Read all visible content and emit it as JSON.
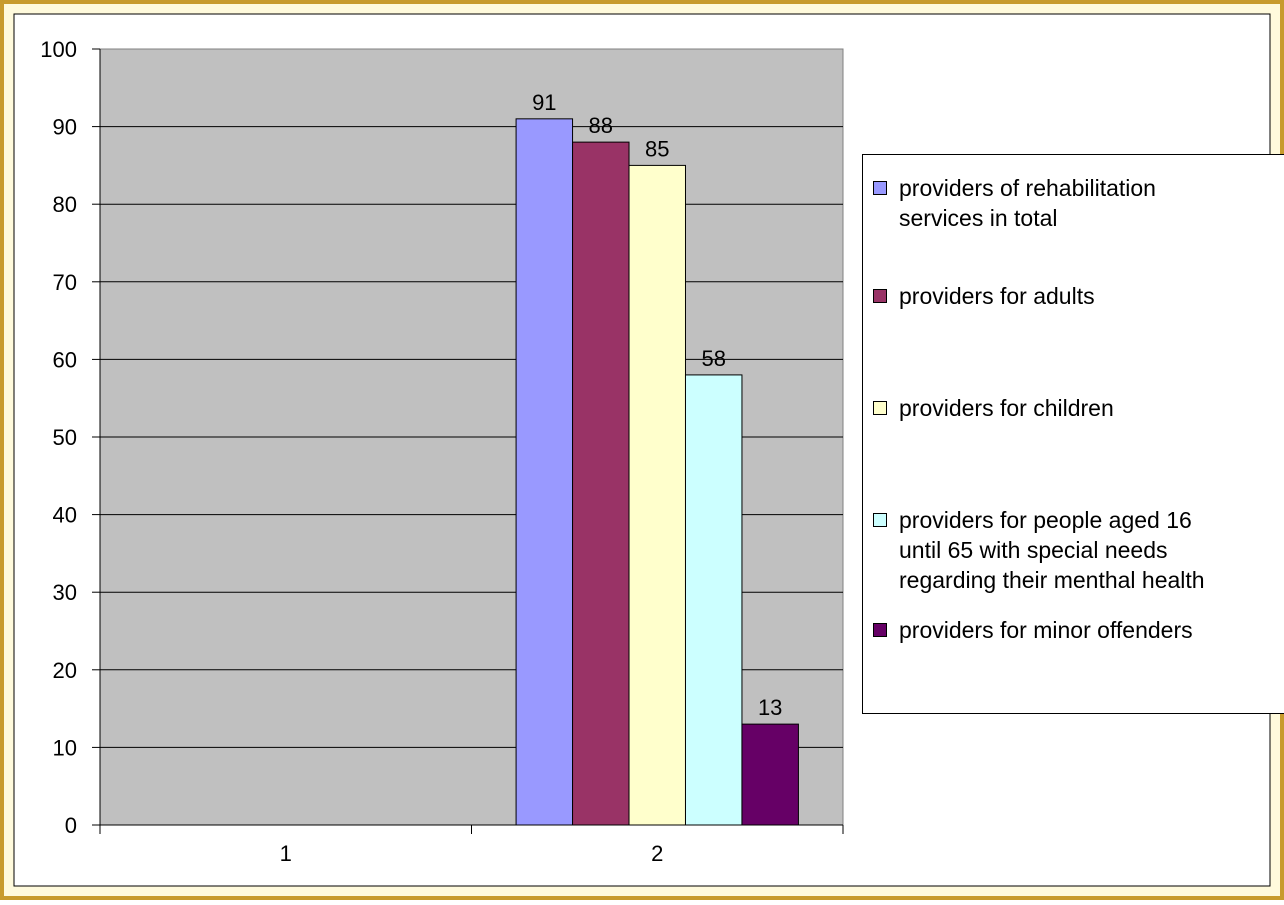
{
  "chart_data": {
    "type": "bar",
    "categories": [
      "1",
      "2"
    ],
    "ylim": [
      0,
      100
    ],
    "yticks": [
      0,
      10,
      20,
      30,
      40,
      50,
      60,
      70,
      80,
      90,
      100
    ],
    "grid": true,
    "legend_position": "right",
    "series": [
      {
        "name": "providers of rehabilitation services in total",
        "values": [
          null,
          91
        ],
        "color": "#9999ff"
      },
      {
        "name": "providers for adults",
        "values": [
          null,
          88
        ],
        "color": "#993366"
      },
      {
        "name": "providers for children",
        "values": [
          null,
          85
        ],
        "color": "#ffffcc"
      },
      {
        "name": "providers for people aged 16 until 65 with special needs regarding their menthal health",
        "values": [
          null,
          58
        ],
        "color": "#ccffff"
      },
      {
        "name": "providers for minor offenders",
        "values": [
          null,
          13
        ],
        "color": "#660066"
      }
    ],
    "data_labels": [
      [
        null,
        "91"
      ],
      [
        null,
        "88"
      ],
      [
        null,
        "85"
      ],
      [
        null,
        "58"
      ],
      [
        null,
        "13"
      ]
    ]
  },
  "legend": {
    "items": [
      {
        "label": "providers of rehabilitation\nservices in total",
        "color": "#9999ff"
      },
      {
        "label": "providers for adults",
        "color": "#993366"
      },
      {
        "label": "providers for children",
        "color": "#ffffcc"
      },
      {
        "label": "providers for people aged 16\nuntil 65 with special needs\nregarding their menthal health",
        "color": "#ccffff"
      },
      {
        "label": "providers for minor offenders",
        "color": "#660066"
      }
    ]
  },
  "colors": {
    "frame_background": "#fffadc",
    "frame_border": "#c89b2d",
    "plot_background": "#c0c0c0",
    "axis": "#000000"
  }
}
